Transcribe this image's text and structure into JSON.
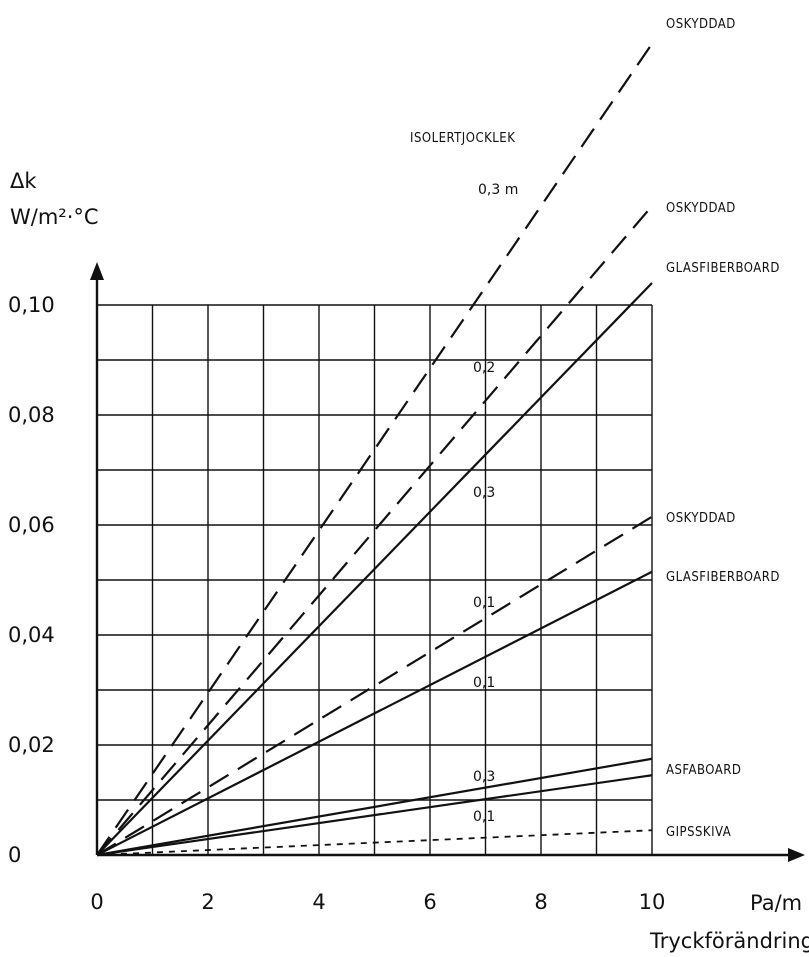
{
  "chart_data": {
    "type": "line",
    "ylabel_symbol": "Δk",
    "ylabel_unit": "W/m²·°C",
    "xlabel_unit": "Pa/m",
    "xlabel": "Tryckförändring",
    "xlim": [
      0,
      10
    ],
    "ylim": [
      0,
      0.1
    ],
    "grid": true,
    "x_ticks": [
      0,
      2,
      4,
      6,
      8,
      10
    ],
    "x_tick_labels": [
      "0",
      "2",
      "4",
      "6",
      "8",
      "10"
    ],
    "y_ticks": [
      0,
      0.02,
      0.04,
      0.06,
      0.08,
      0.1
    ],
    "y_tick_labels": [
      "0",
      "0,02",
      "0,04",
      "0,06",
      "0,08",
      "0,10"
    ],
    "header_annotation": "ISOLERTJOCKLEK",
    "series": [
      {
        "name": "OSKYDDAD",
        "thickness": "0,3 m",
        "style": "dashed",
        "x": [
          0,
          10
        ],
        "y": [
          0,
          0.1475
        ]
      },
      {
        "name": "OSKYDDAD",
        "thickness": "0,2",
        "style": "dashed",
        "x": [
          0,
          10
        ],
        "y": [
          0,
          0.118
        ]
      },
      {
        "name": "GLASFIBERBOARD",
        "thickness": "0,3",
        "style": "solid",
        "x": [
          0,
          10
        ],
        "y": [
          0,
          0.104
        ]
      },
      {
        "name": "OSKYDDAD",
        "thickness": "0,1",
        "style": "dashed",
        "x": [
          0,
          10
        ],
        "y": [
          0,
          0.0615
        ]
      },
      {
        "name": "GLASFIBERBOARD",
        "thickness": "0,1",
        "style": "solid",
        "x": [
          0,
          10
        ],
        "y": [
          0,
          0.0515
        ]
      },
      {
        "name": "ASFABOARD",
        "thickness": "0,3",
        "style": "solid",
        "x": [
          0,
          10
        ],
        "y": [
          0,
          0.0175
        ]
      },
      {
        "name": "",
        "thickness": "",
        "style": "solid",
        "x": [
          0,
          10
        ],
        "y": [
          0,
          0.0145
        ]
      },
      {
        "name": "GIPSSKIVA",
        "thickness": "0,1",
        "style": "dotted",
        "x": [
          0,
          10
        ],
        "y": [
          0,
          0.0045
        ]
      }
    ]
  }
}
